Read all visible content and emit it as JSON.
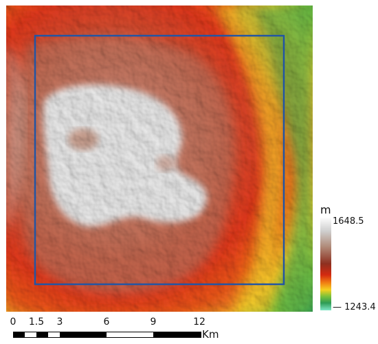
{
  "legend": {
    "unit": "m",
    "max_value": "1648.5",
    "min_value": "— 1243.4",
    "colors": [
      "#ffffff",
      "#c9c9c9",
      "#b08a78",
      "#8e3020",
      "#d42a10",
      "#f07a12",
      "#f5d020",
      "#7cc13a",
      "#2e9c55",
      "#7ee6c6"
    ]
  },
  "scalebar": {
    "ticks": [
      "0",
      "1.5",
      "3",
      "6",
      "9",
      "12"
    ],
    "tick_values_km": [
      0,
      1.5,
      3,
      6,
      9,
      12
    ],
    "unit": "Km",
    "colors": [
      "#000000",
      "#ffffff"
    ]
  },
  "map": {
    "description_colors": {
      "summit_plateau": "#e8e8e8",
      "upper_slopes": "#c9885f",
      "mid_slopes": "#e0371c",
      "lower_slopes": "#f5c72a",
      "base": "#45a74f"
    },
    "study_area_box_color": "#2255a4"
  }
}
